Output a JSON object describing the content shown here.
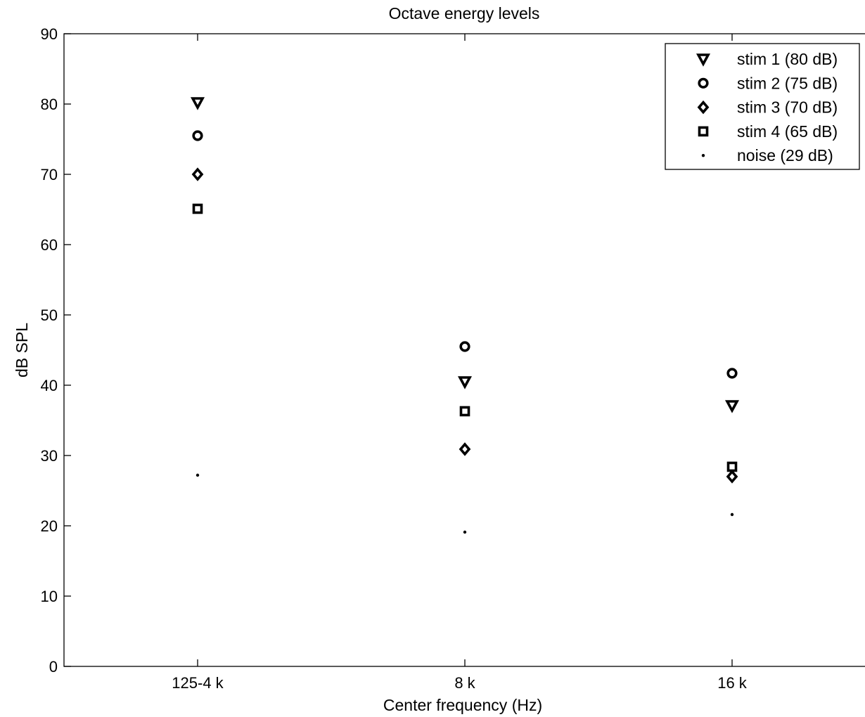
{
  "chart_data": {
    "type": "scatter",
    "title": "Octave energy levels",
    "xlabel": "Center frequency (Hz)",
    "ylabel": "dB SPL",
    "categories": [
      "125-4 k",
      "8 k",
      "16 k"
    ],
    "ylim": [
      0,
      90
    ],
    "yticks": [
      0,
      10,
      20,
      30,
      40,
      50,
      60,
      70,
      80,
      90
    ],
    "grid": false,
    "legend_position": "top-right",
    "series": [
      {
        "name": "stim 1 (80 dB)",
        "marker": "triangle-down",
        "values": [
          80.2,
          40.5,
          37.1
        ]
      },
      {
        "name": "stim 2 (75 dB)",
        "marker": "circle",
        "values": [
          75.5,
          45.5,
          41.7
        ]
      },
      {
        "name": "stim 3 (70 dB)",
        "marker": "diamond",
        "values": [
          70.0,
          30.9,
          27.0
        ]
      },
      {
        "name": "stim 4 (65 dB)",
        "marker": "square",
        "values": [
          65.1,
          36.3,
          28.4
        ]
      },
      {
        "name": "noise (29 dB)",
        "marker": "dot",
        "values": [
          27.2,
          19.1,
          21.6
        ]
      }
    ]
  }
}
